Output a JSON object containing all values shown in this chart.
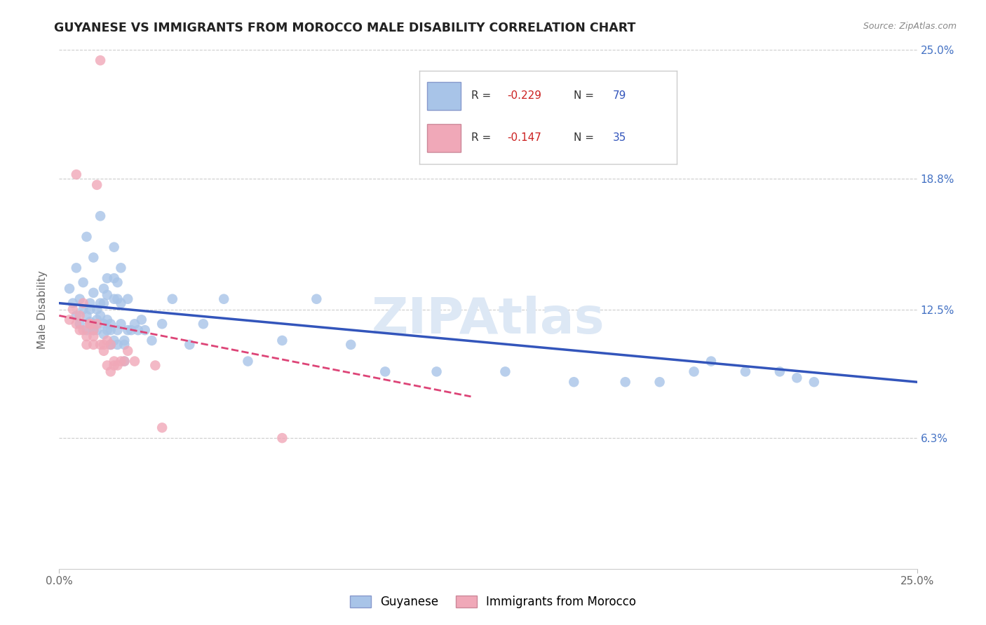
{
  "title": "GUYANESE VS IMMIGRANTS FROM MOROCCO MALE DISABILITY CORRELATION CHART",
  "source": "Source: ZipAtlas.com",
  "ylabel": "Male Disability",
  "x_min": 0.0,
  "x_max": 0.25,
  "y_min": 0.0,
  "y_max": 0.25,
  "y_ticks": [
    0.063,
    0.125,
    0.188,
    0.25
  ],
  "y_tick_labels": [
    "6.3%",
    "12.5%",
    "18.8%",
    "25.0%"
  ],
  "R_blue": -0.229,
  "N_blue": 79,
  "R_pink": -0.147,
  "N_pink": 35,
  "blue_color": "#a8c4e8",
  "pink_color": "#f0a8b8",
  "blue_line_color": "#3355bb",
  "pink_line_color": "#dd4477",
  "blue_scatter": [
    [
      0.003,
      0.135
    ],
    [
      0.004,
      0.128
    ],
    [
      0.005,
      0.122
    ],
    [
      0.005,
      0.145
    ],
    [
      0.006,
      0.13
    ],
    [
      0.006,
      0.118
    ],
    [
      0.007,
      0.125
    ],
    [
      0.007,
      0.138
    ],
    [
      0.008,
      0.16
    ],
    [
      0.008,
      0.122
    ],
    [
      0.008,
      0.115
    ],
    [
      0.009,
      0.125
    ],
    [
      0.009,
      0.119
    ],
    [
      0.009,
      0.128
    ],
    [
      0.01,
      0.133
    ],
    [
      0.01,
      0.115
    ],
    [
      0.01,
      0.15
    ],
    [
      0.01,
      0.118
    ],
    [
      0.011,
      0.12
    ],
    [
      0.011,
      0.115
    ],
    [
      0.011,
      0.125
    ],
    [
      0.012,
      0.17
    ],
    [
      0.012,
      0.122
    ],
    [
      0.012,
      0.128
    ],
    [
      0.013,
      0.113
    ],
    [
      0.013,
      0.118
    ],
    [
      0.013,
      0.135
    ],
    [
      0.013,
      0.128
    ],
    [
      0.014,
      0.14
    ],
    [
      0.014,
      0.12
    ],
    [
      0.014,
      0.132
    ],
    [
      0.014,
      0.115
    ],
    [
      0.015,
      0.108
    ],
    [
      0.015,
      0.118
    ],
    [
      0.015,
      0.108
    ],
    [
      0.015,
      0.115
    ],
    [
      0.016,
      0.155
    ],
    [
      0.016,
      0.14
    ],
    [
      0.016,
      0.13
    ],
    [
      0.016,
      0.11
    ],
    [
      0.017,
      0.13
    ],
    [
      0.017,
      0.115
    ],
    [
      0.017,
      0.108
    ],
    [
      0.017,
      0.138
    ],
    [
      0.018,
      0.128
    ],
    [
      0.018,
      0.145
    ],
    [
      0.018,
      0.118
    ],
    [
      0.019,
      0.11
    ],
    [
      0.019,
      0.1
    ],
    [
      0.019,
      0.108
    ],
    [
      0.02,
      0.13
    ],
    [
      0.02,
      0.115
    ],
    [
      0.021,
      0.115
    ],
    [
      0.022,
      0.118
    ],
    [
      0.023,
      0.115
    ],
    [
      0.024,
      0.12
    ],
    [
      0.025,
      0.115
    ],
    [
      0.027,
      0.11
    ],
    [
      0.03,
      0.118
    ],
    [
      0.033,
      0.13
    ],
    [
      0.038,
      0.108
    ],
    [
      0.042,
      0.118
    ],
    [
      0.048,
      0.13
    ],
    [
      0.055,
      0.1
    ],
    [
      0.065,
      0.11
    ],
    [
      0.075,
      0.13
    ],
    [
      0.085,
      0.108
    ],
    [
      0.095,
      0.095
    ],
    [
      0.11,
      0.095
    ],
    [
      0.13,
      0.095
    ],
    [
      0.15,
      0.09
    ],
    [
      0.165,
      0.09
    ],
    [
      0.175,
      0.09
    ],
    [
      0.185,
      0.095
    ],
    [
      0.19,
      0.1
    ],
    [
      0.2,
      0.095
    ],
    [
      0.21,
      0.095
    ],
    [
      0.215,
      0.092
    ],
    [
      0.22,
      0.09
    ]
  ],
  "pink_scatter": [
    [
      0.003,
      0.12
    ],
    [
      0.004,
      0.125
    ],
    [
      0.005,
      0.118
    ],
    [
      0.005,
      0.19
    ],
    [
      0.006,
      0.115
    ],
    [
      0.006,
      0.122
    ],
    [
      0.007,
      0.128
    ],
    [
      0.007,
      0.115
    ],
    [
      0.008,
      0.112
    ],
    [
      0.008,
      0.108
    ],
    [
      0.009,
      0.118
    ],
    [
      0.009,
      0.118
    ],
    [
      0.01,
      0.112
    ],
    [
      0.01,
      0.108
    ],
    [
      0.01,
      0.115
    ],
    [
      0.011,
      0.185
    ],
    [
      0.011,
      0.118
    ],
    [
      0.012,
      0.245
    ],
    [
      0.012,
      0.108
    ],
    [
      0.013,
      0.105
    ],
    [
      0.013,
      0.108
    ],
    [
      0.014,
      0.11
    ],
    [
      0.014,
      0.098
    ],
    [
      0.015,
      0.108
    ],
    [
      0.015,
      0.095
    ],
    [
      0.016,
      0.098
    ],
    [
      0.016,
      0.1
    ],
    [
      0.017,
      0.098
    ],
    [
      0.018,
      0.1
    ],
    [
      0.019,
      0.1
    ],
    [
      0.02,
      0.105
    ],
    [
      0.022,
      0.1
    ],
    [
      0.028,
      0.098
    ],
    [
      0.03,
      0.068
    ],
    [
      0.065,
      0.063
    ]
  ]
}
